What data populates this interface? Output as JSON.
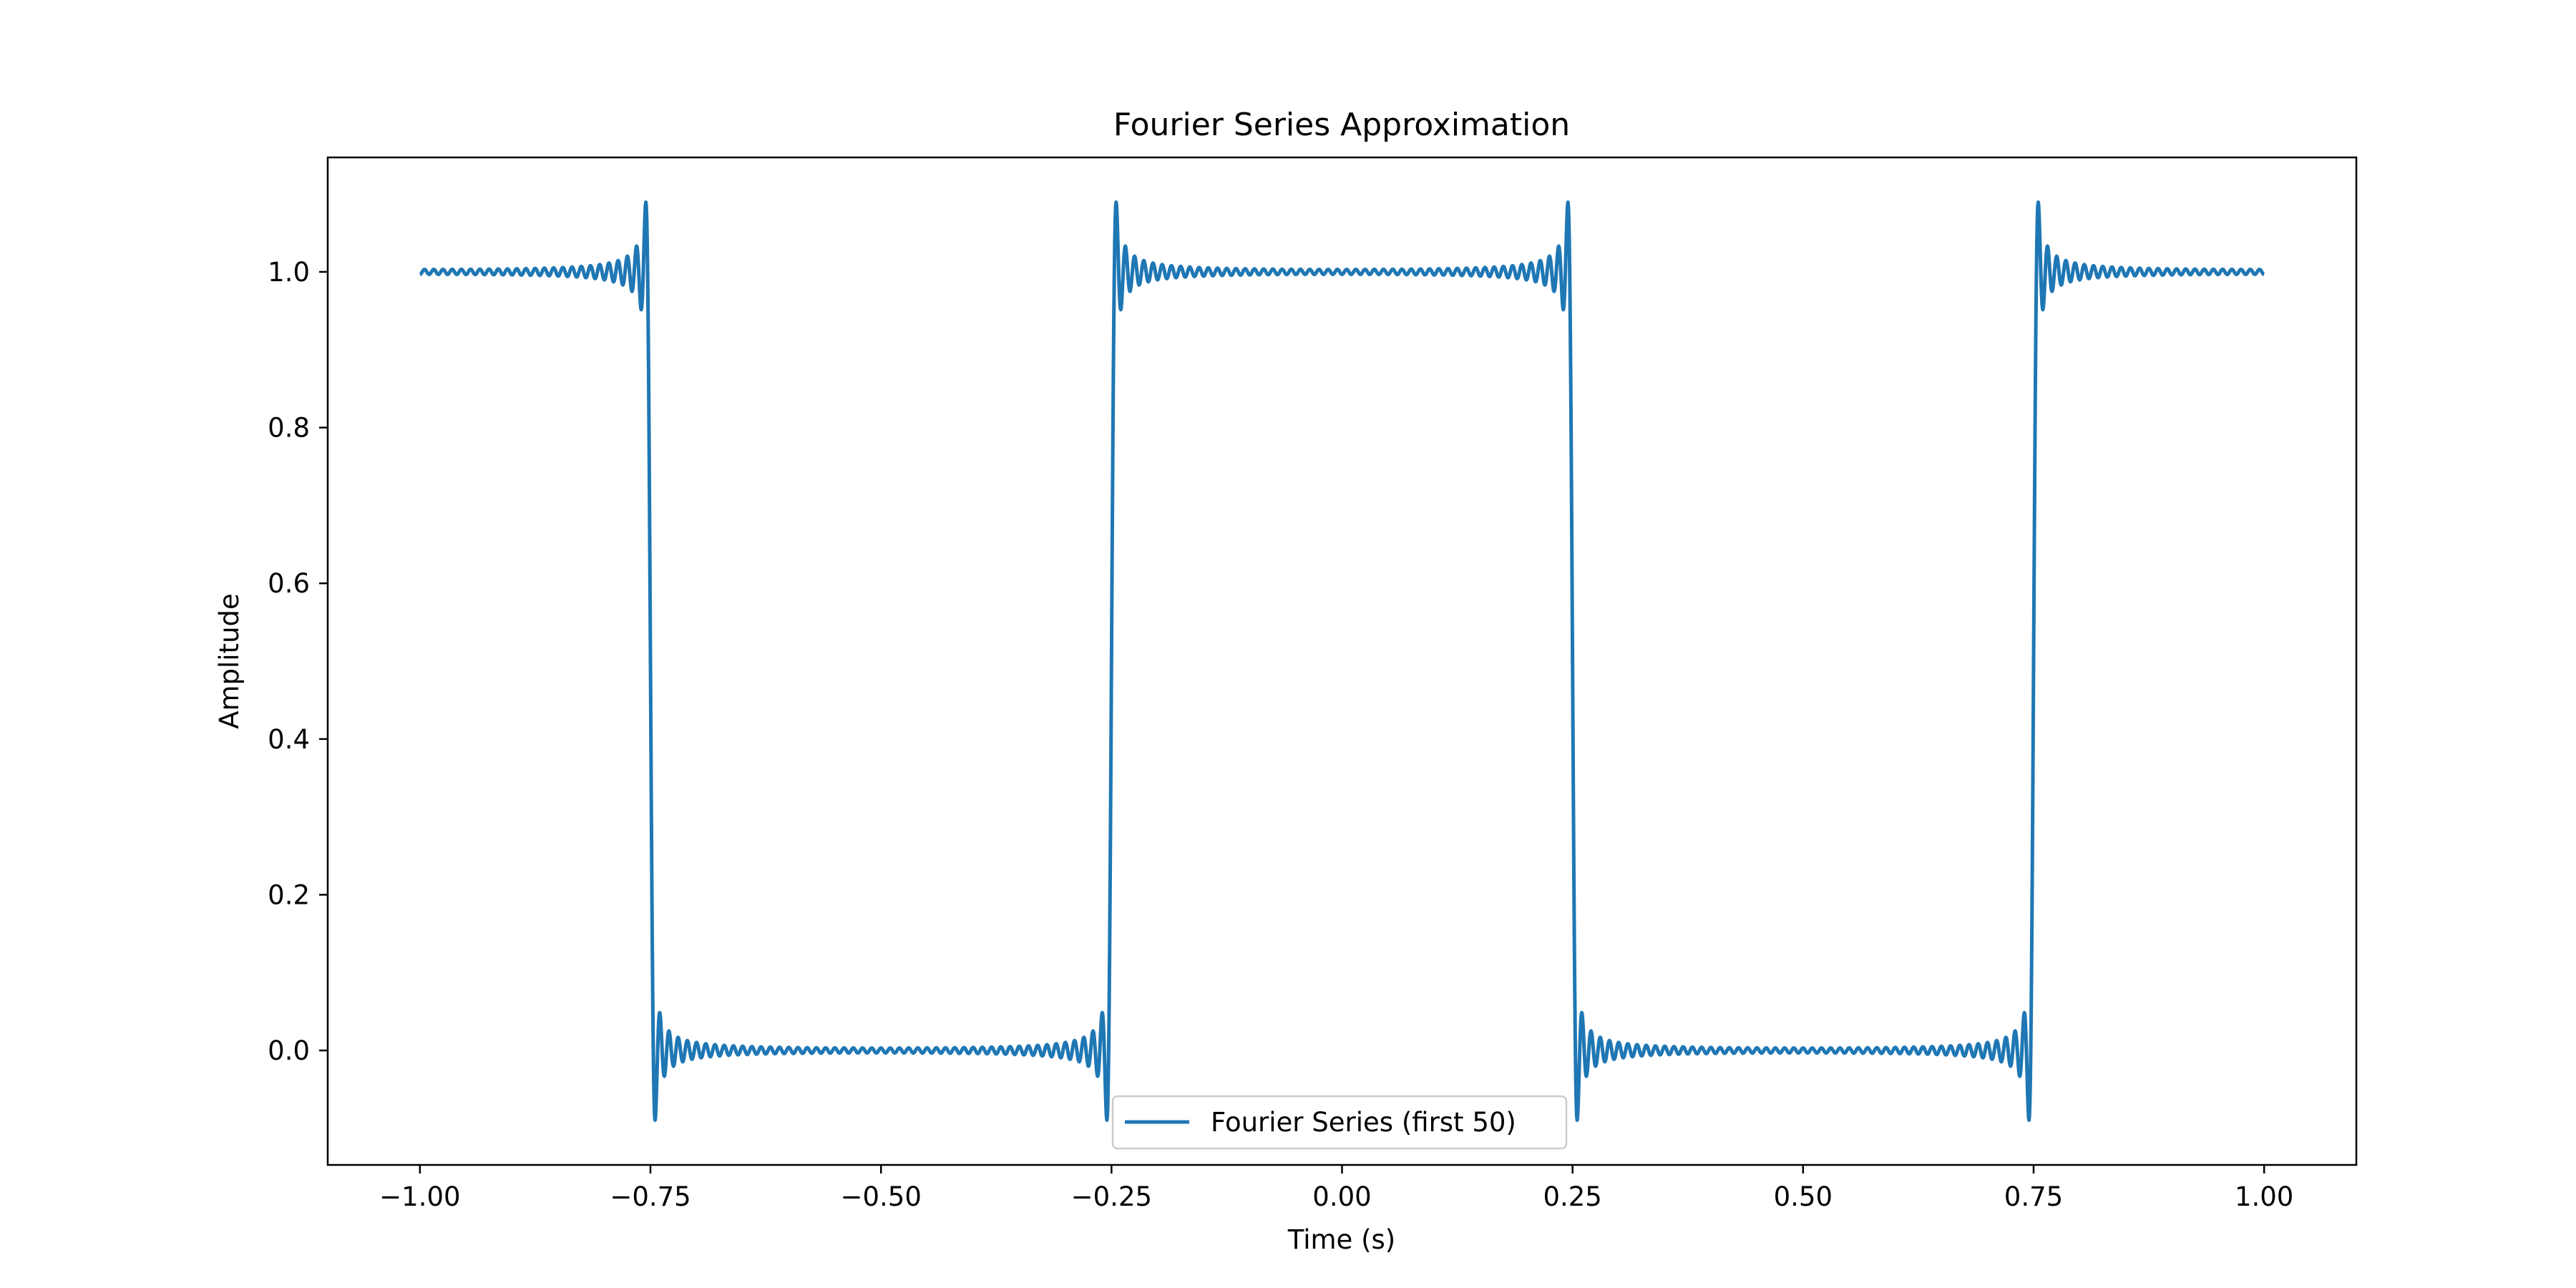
{
  "chart_data": {
    "type": "line",
    "title": "Fourier Series Approximation",
    "xlabel": "Time (s)",
    "ylabel": "Amplitude",
    "xlim": [
      -1.1,
      1.1
    ],
    "ylim": [
      -0.147,
      1.147
    ],
    "x_ticks": [
      -1.0,
      -0.75,
      -0.5,
      -0.25,
      0.0,
      0.25,
      0.5,
      0.75,
      1.0
    ],
    "x_tick_labels": [
      "−1.00",
      "−0.75",
      "−0.50",
      "−0.25",
      "0.00",
      "0.25",
      "0.50",
      "0.75",
      "1.00"
    ],
    "y_ticks": [
      0.0,
      0.2,
      0.4,
      0.6,
      0.8,
      1.0
    ],
    "y_tick_labels": [
      "0.0",
      "0.2",
      "0.4",
      "0.6",
      "0.8",
      "1.0"
    ],
    "grid": false,
    "legend": {
      "placement": "lower-center",
      "entries": [
        "Fourier Series (first 50)"
      ]
    },
    "series": [
      {
        "name": "Fourier Series (first 50)",
        "color": "#1f77b4",
        "function": "square wave partial sum: 0.5 + (2/π)·Σ_{k=1..50} sin((2k−1)·π/2)/(2k−1)·cos((2k−1)·2πt)",
        "harmonics": 50,
        "period": 1.0,
        "x_range": [
          -1.0,
          1.0
        ],
        "samples": 4000
      }
    ]
  }
}
